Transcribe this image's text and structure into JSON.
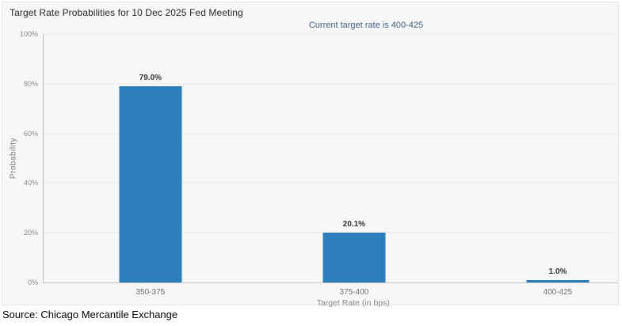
{
  "chart_data": {
    "type": "bar",
    "title": "Target Rate Probabilities for 10 Dec 2025 Fed Meeting",
    "subtitle": "Current target rate is 400-425",
    "categories": [
      "350-375",
      "375-400",
      "400-425"
    ],
    "values": [
      79.0,
      20.1,
      1.0
    ],
    "value_labels": [
      "79.0%",
      "20.1%",
      "1.0%"
    ],
    "xlabel": "Target Rate (in bps)",
    "ylabel": "Probability",
    "ylim": [
      0,
      100
    ],
    "yticks": [
      0,
      20,
      40,
      60,
      80,
      100
    ],
    "ytick_labels": [
      "0%",
      "20%",
      "40%",
      "60%",
      "80%",
      "100%"
    ],
    "grid": "horizontal-dotted",
    "legend": "none",
    "bar_color": "#2b7eb9"
  },
  "colors": {
    "panel_background": "#f7f7f7",
    "page_background": "#ffffff",
    "subtitle_text": "#3e5c7d",
    "bar_fill": "#2b7eb9"
  },
  "footer": {
    "source": "Source: Chicago Mercantile Exchange"
  }
}
